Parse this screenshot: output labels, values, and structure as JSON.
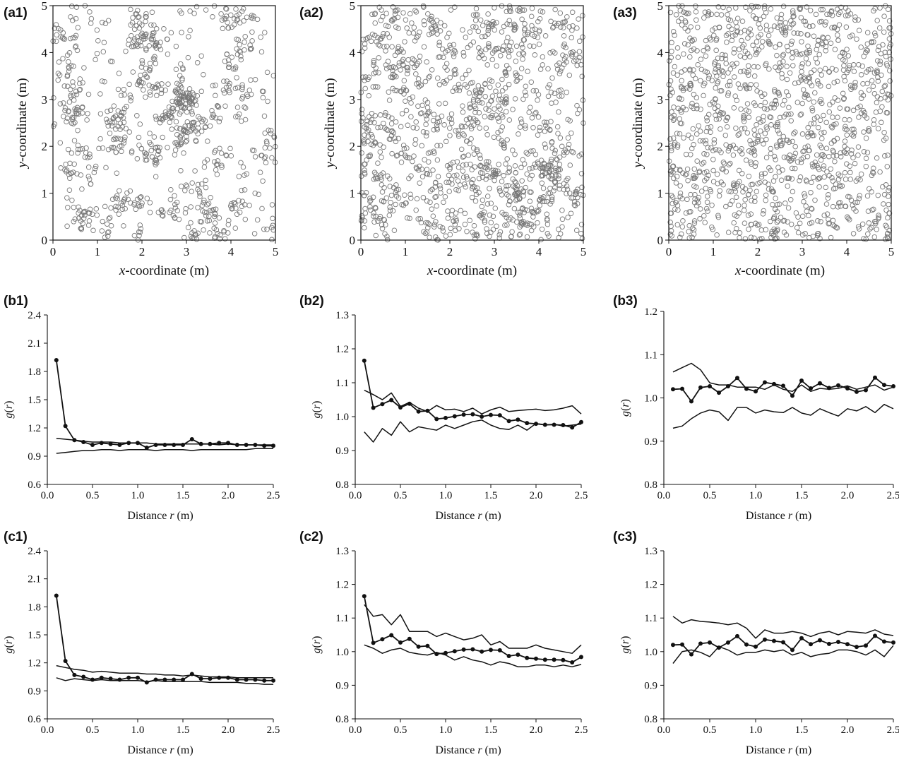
{
  "chart_data": [
    {
      "id": "a1",
      "label": "(a1)",
      "type": "scatter",
      "xlabel_var": "x",
      "xlabel_rest": "-coordinate (m)",
      "ylabel_var": "y",
      "ylabel_rest": "-coordinate (m)",
      "xlim": [
        0,
        5
      ],
      "ylim": [
        0,
        5
      ],
      "xticks": [
        "0",
        "1",
        "2",
        "3",
        "4",
        "5"
      ],
      "yticks": [
        "0",
        "1",
        "2",
        "3",
        "4",
        "5"
      ],
      "n_points": 900,
      "seed": 11,
      "pattern": "clustered"
    },
    {
      "id": "a2",
      "label": "(a2)",
      "type": "scatter",
      "xlabel_var": "x",
      "xlabel_rest": "-coordinate (m)",
      "ylabel_var": "y",
      "ylabel_rest": "-coordinate (m)",
      "xlim": [
        0,
        5
      ],
      "ylim": [
        0,
        5
      ],
      "xticks": [
        "0",
        "1",
        "2",
        "3",
        "4",
        "5"
      ],
      "yticks": [
        "0",
        "1",
        "2",
        "3",
        "4",
        "5"
      ],
      "n_points": 1250,
      "seed": 23,
      "pattern": "weakly-clustered"
    },
    {
      "id": "a3",
      "label": "(a3)",
      "type": "scatter",
      "xlabel_var": "x",
      "xlabel_rest": "-coordinate (m)",
      "ylabel_var": "y",
      "ylabel_rest": "-coordinate (m)",
      "xlim": [
        0,
        5
      ],
      "ylim": [
        0,
        5
      ],
      "xticks": [
        "0",
        "1",
        "2",
        "3",
        "4",
        "5"
      ],
      "yticks": [
        "0",
        "1",
        "2",
        "3",
        "4",
        "5"
      ],
      "n_points": 1250,
      "seed": 37,
      "pattern": "random"
    },
    {
      "id": "b1",
      "label": "(b1)",
      "type": "line",
      "xlabel": "Distance ",
      "xlabel_var": "r",
      "xlabel_unit": " (m)",
      "ylabel_var": "r",
      "xlim": [
        0,
        2.5
      ],
      "ylim": [
        0.6,
        2.4
      ],
      "xticks": [
        "0.0",
        "0.5",
        "1.0",
        "1.5",
        "2.0",
        "2.5"
      ],
      "yticks": [
        "0.6",
        "0.9",
        "1.2",
        "1.5",
        "1.8",
        "2.1",
        "2.4"
      ],
      "x": [
        0.1,
        0.2,
        0.3,
        0.4,
        0.5,
        0.6,
        0.7,
        0.8,
        0.9,
        1.0,
        1.1,
        1.2,
        1.3,
        1.4,
        1.5,
        1.6,
        1.7,
        1.8,
        1.9,
        2.0,
        2.1,
        2.2,
        2.3,
        2.4,
        2.5
      ],
      "series": [
        {
          "values": [
            1.92,
            1.22,
            1.07,
            1.05,
            1.02,
            1.04,
            1.03,
            1.02,
            1.04,
            1.04,
            0.99,
            1.02,
            1.02,
            1.02,
            1.02,
            1.08,
            1.03,
            1.03,
            1.04,
            1.04,
            1.02,
            1.02,
            1.02,
            1.01,
            1.01
          ],
          "markers": true
        },
        {
          "values": [
            1.09,
            1.08,
            1.07,
            1.06,
            1.05,
            1.05,
            1.05,
            1.04,
            1.04,
            1.04,
            1.04,
            1.03,
            1.03,
            1.03,
            1.03,
            1.03,
            1.03,
            1.03,
            1.02,
            1.03,
            1.02,
            1.02,
            1.02,
            1.02,
            1.02
          ],
          "markers": false
        },
        {
          "values": [
            0.93,
            0.94,
            0.95,
            0.96,
            0.96,
            0.97,
            0.97,
            0.96,
            0.97,
            0.97,
            0.97,
            0.96,
            0.97,
            0.97,
            0.97,
            0.96,
            0.97,
            0.97,
            0.97,
            0.97,
            0.97,
            0.97,
            0.98,
            0.98,
            0.98
          ],
          "markers": false
        }
      ]
    },
    {
      "id": "b2",
      "label": "(b2)",
      "type": "line",
      "xlabel": "Distance ",
      "xlabel_var": "r",
      "xlabel_unit": " (m)",
      "ylabel_var": "r",
      "xlim": [
        0,
        2.5
      ],
      "ylim": [
        0.8,
        1.3
      ],
      "xticks": [
        "0.0",
        "0.5",
        "1.0",
        "1.5",
        "2.0",
        "2.5"
      ],
      "yticks": [
        "0.8",
        "0.9",
        "1.0",
        "1.1",
        "1.2",
        "1.3"
      ],
      "x": [
        0.1,
        0.2,
        0.3,
        0.4,
        0.5,
        0.6,
        0.7,
        0.8,
        0.9,
        1.0,
        1.1,
        1.2,
        1.3,
        1.4,
        1.5,
        1.6,
        1.7,
        1.8,
        1.9,
        2.0,
        2.1,
        2.2,
        2.3,
        2.4,
        2.5
      ],
      "series": [
        {
          "values": [
            1.165,
            1.026,
            1.037,
            1.049,
            1.027,
            1.038,
            1.015,
            1.017,
            0.993,
            0.996,
            1.001,
            1.006,
            1.007,
            1.0,
            1.005,
            1.004,
            0.987,
            0.991,
            0.981,
            0.979,
            0.976,
            0.976,
            0.975,
            0.968,
            0.984
          ],
          "markers": true
        },
        {
          "values": [
            1.078,
            1.065,
            1.05,
            1.07,
            1.03,
            1.042,
            1.025,
            1.015,
            1.033,
            1.02,
            1.022,
            1.015,
            1.025,
            1.008,
            1.02,
            1.028,
            1.015,
            1.018,
            1.02,
            1.022,
            1.018,
            1.02,
            1.025,
            1.032,
            1.008
          ],
          "markers": false
        },
        {
          "values": [
            0.955,
            0.925,
            0.965,
            0.945,
            0.985,
            0.955,
            0.97,
            0.965,
            0.96,
            0.975,
            0.965,
            0.975,
            0.985,
            0.99,
            0.975,
            0.965,
            0.962,
            0.975,
            0.96,
            0.98,
            0.975,
            0.978,
            0.972,
            0.975,
            0.978
          ],
          "markers": false
        }
      ]
    },
    {
      "id": "b3",
      "label": "(b3)",
      "type": "line",
      "xlabel": "Distance ",
      "xlabel_var": "r",
      "xlabel_unit": " (m)",
      "ylabel_var": "r",
      "xlim": [
        0,
        2.5
      ],
      "ylim": [
        0.8,
        1.2
      ],
      "xticks": [
        "0.0",
        "0.5",
        "1.0",
        "1.5",
        "2.0",
        "2.5"
      ],
      "yticks": [
        "0.8",
        "0.9",
        "1.0",
        "1.1",
        "1.2"
      ],
      "x": [
        0.1,
        0.2,
        0.3,
        0.4,
        0.5,
        0.6,
        0.7,
        0.8,
        0.9,
        1.0,
        1.1,
        1.2,
        1.3,
        1.4,
        1.5,
        1.6,
        1.7,
        1.8,
        1.9,
        2.0,
        2.1,
        2.2,
        2.3,
        2.4,
        2.5
      ],
      "series": [
        {
          "values": [
            1.02,
            1.021,
            0.992,
            1.024,
            1.027,
            1.012,
            1.027,
            1.046,
            1.021,
            1.015,
            1.036,
            1.032,
            1.028,
            1.005,
            1.04,
            1.022,
            1.034,
            1.023,
            1.029,
            1.022,
            1.014,
            1.018,
            1.047,
            1.03,
            1.027
          ],
          "markers": true
        },
        {
          "values": [
            1.06,
            1.07,
            1.08,
            1.065,
            1.035,
            1.03,
            1.03,
            1.025,
            1.025,
            1.025,
            1.02,
            1.03,
            1.02,
            1.015,
            1.03,
            1.015,
            1.022,
            1.02,
            1.022,
            1.028,
            1.02,
            1.025,
            1.03,
            1.018,
            1.025
          ],
          "markers": false
        },
        {
          "values": [
            0.93,
            0.935,
            0.952,
            0.965,
            0.972,
            0.968,
            0.948,
            0.978,
            0.978,
            0.965,
            0.972,
            0.968,
            0.966,
            0.978,
            0.965,
            0.96,
            0.975,
            0.966,
            0.958,
            0.975,
            0.97,
            0.98,
            0.966,
            0.985,
            0.975
          ],
          "markers": false
        }
      ]
    },
    {
      "id": "c1",
      "label": "(c1)",
      "type": "line",
      "xlabel": "Distance ",
      "xlabel_var": "r",
      "xlabel_unit": " (m)",
      "ylabel_var": "r",
      "xlim": [
        0,
        2.5
      ],
      "ylim": [
        0.6,
        2.4
      ],
      "xticks": [
        "0.0",
        "0.5",
        "1.0",
        "1.5",
        "2.0",
        "2.5"
      ],
      "yticks": [
        "0.6",
        "0.9",
        "1.2",
        "1.5",
        "1.8",
        "2.1",
        "2.4"
      ],
      "x": [
        0.1,
        0.2,
        0.3,
        0.4,
        0.5,
        0.6,
        0.7,
        0.8,
        0.9,
        1.0,
        1.1,
        1.2,
        1.3,
        1.4,
        1.5,
        1.6,
        1.7,
        1.8,
        1.9,
        2.0,
        2.1,
        2.2,
        2.3,
        2.4,
        2.5
      ],
      "series": [
        {
          "values": [
            1.92,
            1.22,
            1.07,
            1.05,
            1.02,
            1.04,
            1.03,
            1.02,
            1.04,
            1.04,
            0.99,
            1.02,
            1.02,
            1.02,
            1.02,
            1.08,
            1.03,
            1.03,
            1.04,
            1.04,
            1.02,
            1.02,
            1.02,
            1.01,
            1.01
          ],
          "markers": true
        },
        {
          "values": [
            1.17,
            1.15,
            1.13,
            1.12,
            1.1,
            1.11,
            1.1,
            1.09,
            1.09,
            1.09,
            1.08,
            1.08,
            1.07,
            1.07,
            1.06,
            1.07,
            1.06,
            1.05,
            1.05,
            1.05,
            1.04,
            1.04,
            1.04,
            1.04,
            1.04
          ],
          "markers": false
        },
        {
          "values": [
            1.04,
            1.01,
            1.03,
            1.02,
            1.01,
            1.02,
            1.01,
            1.01,
            1.01,
            1.01,
            1.0,
            1.01,
            1.0,
            1.0,
            1.0,
            1.0,
            1.0,
            0.99,
            0.99,
            0.99,
            0.99,
            0.98,
            0.98,
            0.97,
            0.97
          ],
          "markers": false
        }
      ]
    },
    {
      "id": "c2",
      "label": "(c2)",
      "type": "line",
      "xlabel": "Distance ",
      "xlabel_var": "r",
      "xlabel_unit": " (m)",
      "ylabel_var": "r",
      "xlim": [
        0,
        2.5
      ],
      "ylim": [
        0.8,
        1.3
      ],
      "xticks": [
        "0.0",
        "0.5",
        "1.0",
        "1.5",
        "2.0",
        "2.5"
      ],
      "yticks": [
        "0.8",
        "0.9",
        "1.0",
        "1.1",
        "1.2",
        "1.3"
      ],
      "x": [
        0.1,
        0.2,
        0.3,
        0.4,
        0.5,
        0.6,
        0.7,
        0.8,
        0.9,
        1.0,
        1.1,
        1.2,
        1.3,
        1.4,
        1.5,
        1.6,
        1.7,
        1.8,
        1.9,
        2.0,
        2.1,
        2.2,
        2.3,
        2.4,
        2.5
      ],
      "series": [
        {
          "values": [
            1.165,
            1.026,
            1.037,
            1.049,
            1.027,
            1.038,
            1.015,
            1.017,
            0.993,
            0.996,
            1.001,
            1.006,
            1.007,
            1.0,
            1.005,
            1.004,
            0.987,
            0.991,
            0.981,
            0.979,
            0.976,
            0.976,
            0.975,
            0.968,
            0.984
          ],
          "markers": true
        },
        {
          "values": [
            1.14,
            1.105,
            1.11,
            1.08,
            1.11,
            1.06,
            1.06,
            1.06,
            1.045,
            1.055,
            1.045,
            1.035,
            1.04,
            1.05,
            1.02,
            1.03,
            1.01,
            1.01,
            1.01,
            1.02,
            1.01,
            1.005,
            1.0,
            0.995,
            1.02
          ],
          "markers": false
        },
        {
          "values": [
            1.02,
            1.01,
            0.995,
            1.005,
            1.01,
            0.998,
            0.993,
            0.99,
            0.998,
            0.99,
            0.975,
            0.985,
            0.975,
            0.97,
            0.96,
            0.97,
            0.965,
            0.955,
            0.955,
            0.96,
            0.96,
            0.955,
            0.96,
            0.955,
            0.962
          ],
          "markers": false
        }
      ]
    },
    {
      "id": "c3",
      "label": "(c3)",
      "type": "line",
      "xlabel": "Distance ",
      "xlabel_var": "r",
      "xlabel_unit": " (m)",
      "ylabel_var": "r",
      "xlim": [
        0,
        2.5
      ],
      "ylim": [
        0.8,
        1.3
      ],
      "xticks": [
        "0.0",
        "0.5",
        "1.0",
        "1.5",
        "2.0",
        "2.5"
      ],
      "yticks": [
        "0.8",
        "0.9",
        "1.0",
        "1.1",
        "1.2",
        "1.3"
      ],
      "x": [
        0.1,
        0.2,
        0.3,
        0.4,
        0.5,
        0.6,
        0.7,
        0.8,
        0.9,
        1.0,
        1.1,
        1.2,
        1.3,
        1.4,
        1.5,
        1.6,
        1.7,
        1.8,
        1.9,
        2.0,
        2.1,
        2.2,
        2.3,
        2.4,
        2.5
      ],
      "series": [
        {
          "values": [
            1.02,
            1.021,
            0.992,
            1.024,
            1.027,
            1.012,
            1.027,
            1.046,
            1.021,
            1.015,
            1.036,
            1.032,
            1.028,
            1.005,
            1.04,
            1.022,
            1.034,
            1.023,
            1.029,
            1.022,
            1.014,
            1.018,
            1.047,
            1.03,
            1.027
          ],
          "markers": true
        },
        {
          "values": [
            1.105,
            1.085,
            1.095,
            1.09,
            1.088,
            1.085,
            1.08,
            1.085,
            1.07,
            1.04,
            1.065,
            1.055,
            1.055,
            1.06,
            1.055,
            1.045,
            1.055,
            1.06,
            1.05,
            1.06,
            1.058,
            1.055,
            1.065,
            1.052,
            1.048
          ],
          "markers": false
        },
        {
          "values": [
            0.965,
            1.0,
            1.005,
            0.998,
            0.985,
            1.015,
            1.005,
            0.99,
            0.998,
            0.998,
            1.005,
            1.0,
            1.005,
            0.99,
            0.998,
            0.985,
            0.992,
            0.995,
            1.005,
            1.005,
            1.0,
            0.99,
            1.005,
            0.985,
            1.018
          ],
          "markers": false
        }
      ]
    }
  ]
}
